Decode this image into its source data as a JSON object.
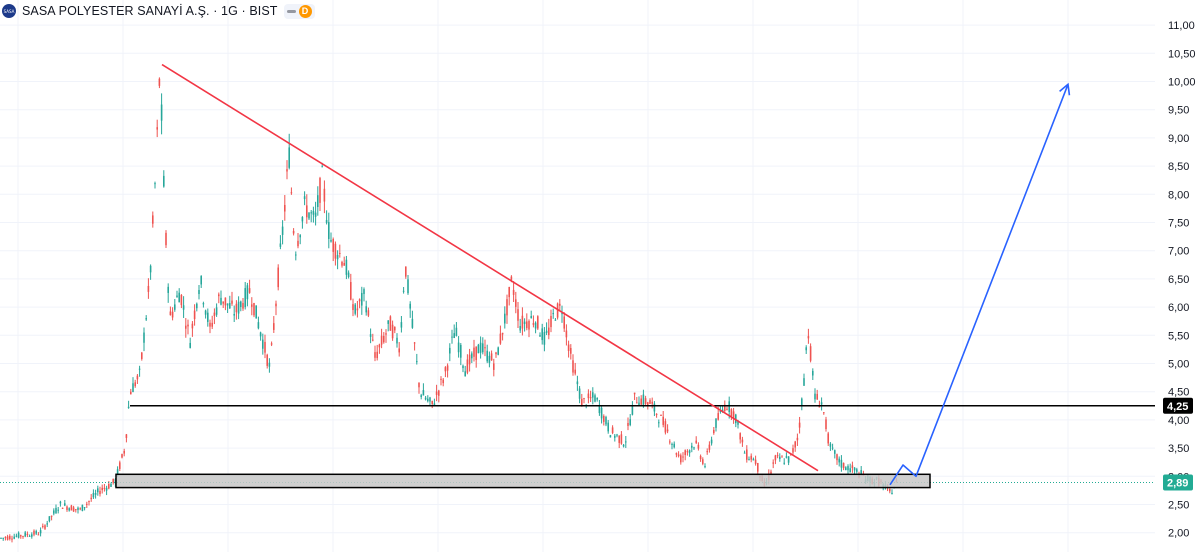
{
  "header": {
    "logo_text": "SASA",
    "title": "SASA POLYESTER SANAYİ A.Ş. · 1G · BIST",
    "badge_letter": "D",
    "badge_color": "#ff9800"
  },
  "colors": {
    "up": "#26a69a",
    "down": "#ef5350",
    "trendline": "#f23645",
    "projection": "#2962ff",
    "support_level": "#000000",
    "support_box_fill": "#c8c8c8",
    "current_price_bg": "#22ab94"
  },
  "chart_data": {
    "type": "line",
    "y_axis": {
      "ticks": [
        "11,00",
        "10,50",
        "10,00",
        "9,50",
        "9,00",
        "8,50",
        "8,00",
        "7,50",
        "7,00",
        "6,50",
        "6,00",
        "5,50",
        "5,00",
        "4,50",
        "4,00",
        "3,50",
        "3,00",
        "2,50",
        "2,00"
      ],
      "ylim": [
        1.9,
        11.2
      ]
    },
    "price_path": [
      [
        0,
        1.9
      ],
      [
        40,
        2.0
      ],
      [
        60,
        2.5
      ],
      [
        80,
        2.4
      ],
      [
        100,
        2.75
      ],
      [
        115,
        2.9
      ],
      [
        125,
        3.5
      ],
      [
        130,
        4.5
      ],
      [
        140,
        4.8
      ],
      [
        150,
        6.5
      ],
      [
        156,
        8.5
      ],
      [
        160,
        10.25
      ],
      [
        165,
        7.5
      ],
      [
        170,
        5.8
      ],
      [
        180,
        6.3
      ],
      [
        190,
        5.4
      ],
      [
        200,
        6.5
      ],
      [
        210,
        5.6
      ],
      [
        220,
        6.2
      ],
      [
        235,
        5.9
      ],
      [
        250,
        6.3
      ],
      [
        260,
        5.6
      ],
      [
        270,
        4.9
      ],
      [
        278,
        6.5
      ],
      [
        284,
        7.6
      ],
      [
        289,
        8.75
      ],
      [
        295,
        7.0
      ],
      [
        305,
        7.8
      ],
      [
        315,
        7.5
      ],
      [
        322,
        8.3
      ],
      [
        330,
        7.2
      ],
      [
        345,
        6.8
      ],
      [
        355,
        5.9
      ],
      [
        365,
        6.2
      ],
      [
        375,
        5.1
      ],
      [
        390,
        5.7
      ],
      [
        400,
        5.3
      ],
      [
        405,
        6.8
      ],
      [
        412,
        5.7
      ],
      [
        420,
        4.5
      ],
      [
        432,
        4.25
      ],
      [
        445,
        4.8
      ],
      [
        455,
        5.6
      ],
      [
        465,
        4.9
      ],
      [
        480,
        5.3
      ],
      [
        495,
        5.0
      ],
      [
        505,
        5.8
      ],
      [
        512,
        6.45
      ],
      [
        520,
        5.7
      ],
      [
        535,
        5.8
      ],
      [
        545,
        5.4
      ],
      [
        555,
        5.9
      ],
      [
        562,
        6.0
      ],
      [
        570,
        5.2
      ],
      [
        582,
        4.3
      ],
      [
        595,
        4.4
      ],
      [
        610,
        3.8
      ],
      [
        625,
        3.6
      ],
      [
        635,
        4.4
      ],
      [
        650,
        4.3
      ],
      [
        665,
        3.9
      ],
      [
        680,
        3.3
      ],
      [
        695,
        3.6
      ],
      [
        705,
        3.2
      ],
      [
        715,
        3.9
      ],
      [
        726,
        4.3
      ],
      [
        735,
        4.1
      ],
      [
        745,
        3.4
      ],
      [
        755,
        3.3
      ],
      [
        765,
        2.8
      ],
      [
        775,
        3.3
      ],
      [
        790,
        3.3
      ],
      [
        798,
        3.7
      ],
      [
        803,
        4.5
      ],
      [
        808,
        5.65
      ],
      [
        815,
        4.4
      ],
      [
        822,
        4.3
      ],
      [
        830,
        3.5
      ],
      [
        842,
        3.2
      ],
      [
        855,
        3.1
      ],
      [
        868,
        2.95
      ],
      [
        880,
        2.9
      ],
      [
        890,
        2.7
      ],
      [
        897,
        2.89
      ]
    ],
    "annotations": {
      "trendline": [
        [
          162,
          10.3
        ],
        [
          818,
          3.1
        ]
      ],
      "resistance_level": {
        "y": 4.25,
        "label": "4,25",
        "x_start": 130
      },
      "support_zone": {
        "y_top": 3.0,
        "y_bottom": 2.8,
        "x_start": 116,
        "x_end": 930
      },
      "current_price": {
        "y": 2.89,
        "label": "2,89"
      },
      "projection": [
        [
          890,
          2.85
        ],
        [
          903,
          3.2
        ],
        [
          916,
          3.0
        ],
        [
          1068,
          9.95
        ]
      ]
    }
  }
}
